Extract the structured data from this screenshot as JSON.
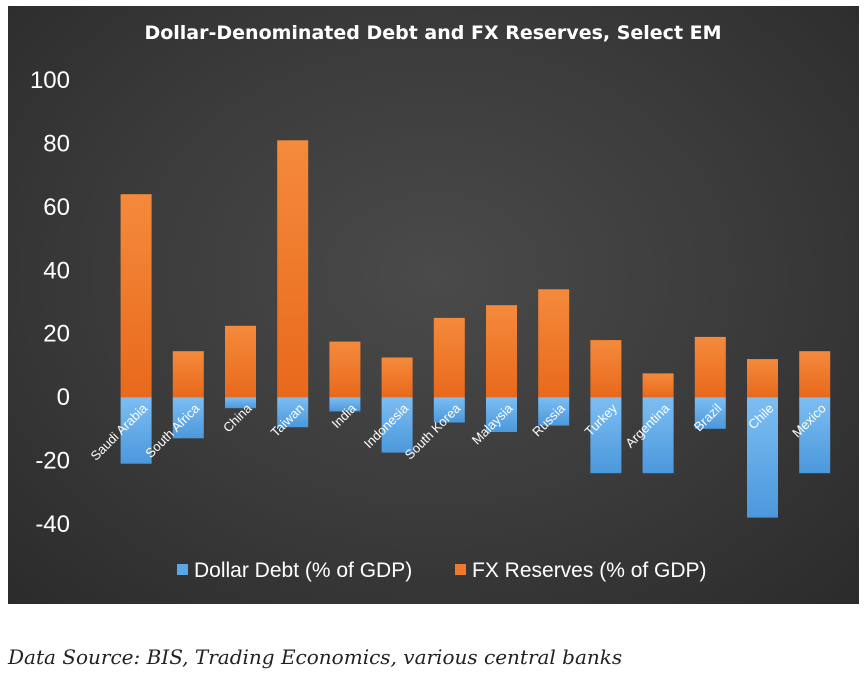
{
  "chart_data": {
    "type": "bar",
    "title": "Dollar-Denominated Debt and FX Reserves, Select EM",
    "categories": [
      "Saudi Arabia",
      "South Africa",
      "China",
      "Taiwan",
      "India",
      "Indonesia",
      "South Korea",
      "Malaysia",
      "Russia",
      "Turkey",
      "Argentina",
      "Brazil",
      "Chile",
      "Mexico"
    ],
    "series": [
      {
        "name": "Dollar Debt (% of GDP)",
        "color": "#5aa6e6",
        "values": [
          -21,
          -13,
          -3.5,
          -9.5,
          -4.5,
          -17.5,
          -8,
          -11,
          -9,
          -24,
          -24,
          -10,
          -38,
          -24
        ]
      },
      {
        "name": "FX Reserves (% of GDP)",
        "color": "#f07a2c",
        "values": [
          64,
          14.5,
          22.5,
          81,
          17.5,
          12.5,
          25,
          29,
          34,
          18,
          7.5,
          19,
          12,
          14.5
        ]
      }
    ],
    "ylim": [
      -40,
      100
    ],
    "yticks": [
      -40,
      -20,
      0,
      20,
      40,
      60,
      80,
      100
    ],
    "stacked": true,
    "grid": false,
    "legend_position": "bottom",
    "xlabel": "",
    "ylabel": ""
  },
  "source_note": "Data Source: BIS, Trading Economics, various central banks"
}
